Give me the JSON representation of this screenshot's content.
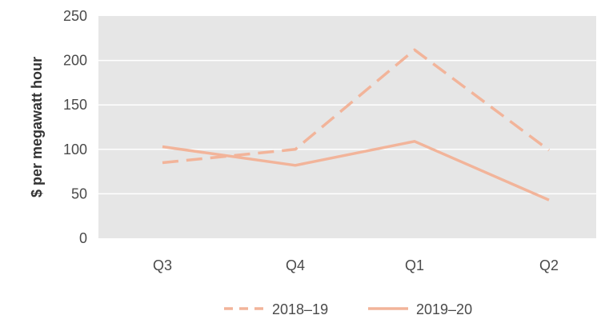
{
  "chart_data": {
    "type": "line",
    "title": "",
    "xlabel": "",
    "ylabel": "$ per megawatt hour",
    "categories": [
      "Q3",
      "Q4",
      "Q1",
      "Q2"
    ],
    "ylim": [
      0,
      250
    ],
    "yticks": [
      0,
      50,
      100,
      150,
      200,
      250
    ],
    "grid": true,
    "legend_position": "bottom",
    "series": [
      {
        "name": "2018–19",
        "values": [
          85,
          100,
          212,
          99
        ],
        "style": "dashed",
        "color": "#f2b49a"
      },
      {
        "name": "2019–20",
        "values": [
          103,
          82,
          109,
          43
        ],
        "style": "solid",
        "color": "#f2b49a"
      }
    ],
    "background_color": "#e6e6e6"
  }
}
